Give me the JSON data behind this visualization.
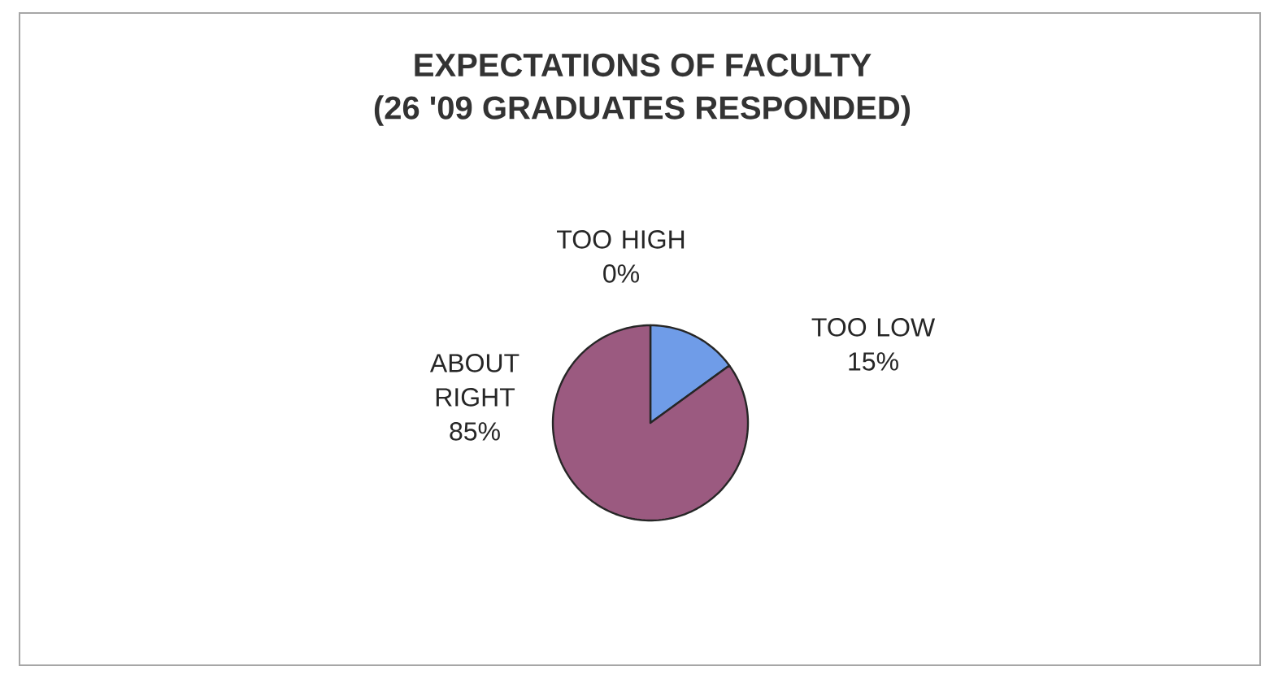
{
  "chart_data": {
    "type": "pie",
    "title": "EXPECTATIONS OF FACULTY",
    "subtitle": "(26 '09 GRADUATES RESPONDED)",
    "categories": [
      "TOO HIGH",
      "TOO LOW",
      "ABOUT RIGHT"
    ],
    "values": [
      0,
      15,
      85
    ],
    "value_labels": [
      "0%",
      "15%",
      "85%"
    ],
    "colors": [
      "#9999ff",
      "#6f9ce8",
      "#9b5a80"
    ]
  }
}
